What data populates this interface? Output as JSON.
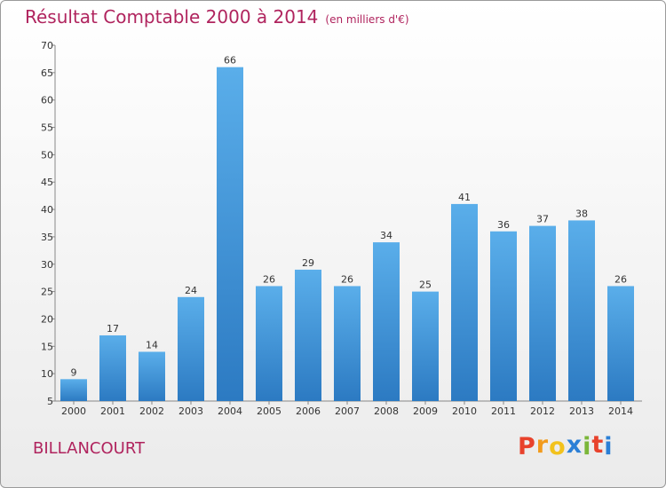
{
  "chart_data": {
    "type": "bar",
    "title": "Résultat Comptable 2000 à 2014",
    "unit_label": "(en milliers d'€)",
    "categories": [
      "2000",
      "2001",
      "2002",
      "2003",
      "2004",
      "2005",
      "2006",
      "2007",
      "2008",
      "2009",
      "2010",
      "2011",
      "2012",
      "2013",
      "2014"
    ],
    "values": [
      9,
      17,
      14,
      24,
      66,
      26,
      29,
      26,
      34,
      25,
      41,
      36,
      37,
      38,
      26
    ],
    "ylim": [
      5,
      70
    ],
    "yticks": [
      5,
      10,
      15,
      20,
      25,
      30,
      35,
      40,
      45,
      50,
      55,
      60,
      65,
      70
    ],
    "grid": false,
    "xlabel": "",
    "ylabel": "",
    "bar_color_top": "#5aaeea",
    "bar_color_bottom": "#2c7ac2"
  },
  "location": "BILLANCOURT",
  "logo": {
    "letters": [
      "P",
      "r",
      "o",
      "x",
      "i",
      "t",
      "i"
    ],
    "colors": [
      "#e8422c",
      "#f29b1d",
      "#f2c21d",
      "#2b7fd6",
      "#7bb63a",
      "#e8422c",
      "#2b7fd6"
    ]
  },
  "colors": {
    "title": "#b0245e",
    "axis": "#888888",
    "text": "#333333"
  }
}
